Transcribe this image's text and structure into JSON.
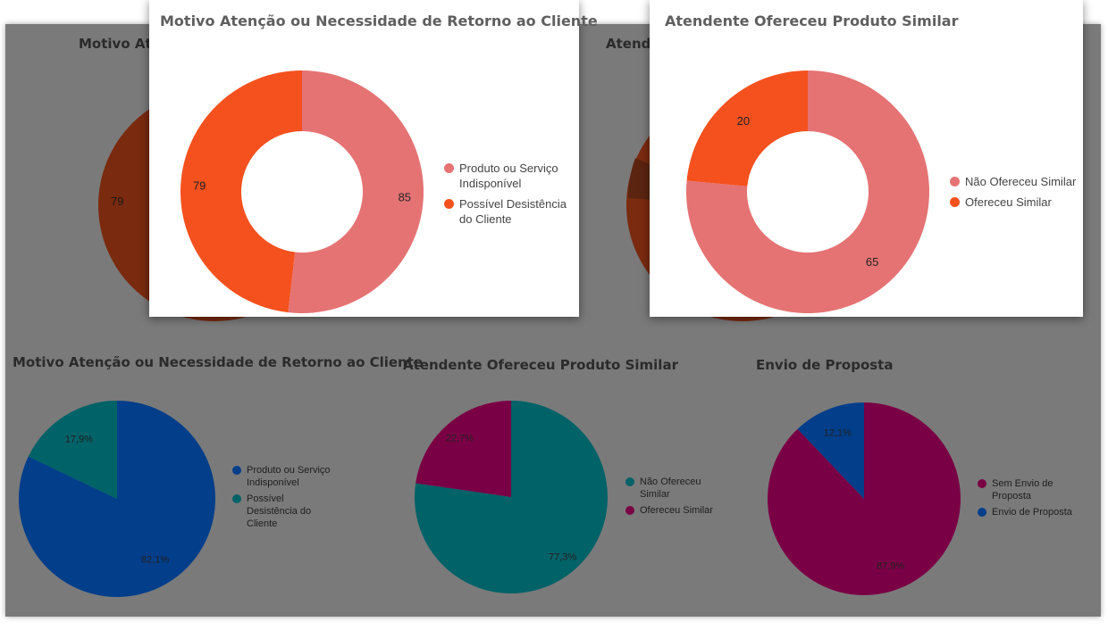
{
  "colors": {
    "pink": "#e57373",
    "orange": "#f4511e",
    "blue": "#023e8a",
    "teal": "#016268",
    "magenta": "#7a0045",
    "dark_orange": "#7a2a0e"
  },
  "ghosts": {
    "top_left_title": "Motivo Ate",
    "top_left_value": "79",
    "top_right_title": "Atend",
    "bottom_left_title": "Motivo Atenção ou Necessidade de Retorno ao Cliente",
    "bottom_mid_title": "Atendente Ofereceu Produto Similar",
    "bottom_right_title": "Envio de Proposta"
  },
  "chart_data": [
    {
      "type": "pie",
      "variant": "donut",
      "title": "Motivo Atenção ou Necessidade de Retorno ao Cliente",
      "categories": [
        "Produto ou Serviço Indisponível",
        "Possível Desistência do Cliente"
      ],
      "values": [
        85,
        79
      ],
      "data_labels": [
        "85",
        "79"
      ],
      "legend_labels": [
        [
          "Produto ou Serviço",
          "Indisponível"
        ],
        [
          "Possível Desistência",
          "do Cliente"
        ]
      ],
      "colors": [
        "#e57373",
        "#f4511e"
      ],
      "legend": "right"
    },
    {
      "type": "pie",
      "variant": "donut",
      "title": "Atendente Ofereceu Produto Similar",
      "categories": [
        "Não Ofereceu Similar",
        "Ofereceu Similar"
      ],
      "values": [
        65,
        20
      ],
      "data_labels": [
        "65",
        "20"
      ],
      "legend_labels": [
        [
          "Não Ofereceu Similar"
        ],
        [
          "Ofereceu Similar"
        ]
      ],
      "colors": [
        "#e57373",
        "#f4511e"
      ],
      "legend": "right"
    },
    {
      "type": "pie",
      "title": "Motivo Atenção ou Necessidade de Retorno ao Cliente",
      "categories": [
        "Produto ou Serviço Indisponível",
        "Possível Desistência do Cliente"
      ],
      "values": [
        82.1,
        17.9
      ],
      "data_labels": [
        "82,1%",
        "17,9%"
      ],
      "legend_labels": [
        [
          "Produto ou Serviço",
          "Indisponível"
        ],
        [
          "Possível",
          "Desistência do",
          "Cliente"
        ]
      ],
      "colors": [
        "#023e8a",
        "#016268"
      ],
      "legend": "right"
    },
    {
      "type": "pie",
      "title": "Atendente Ofereceu Produto Similar",
      "categories": [
        "Não Ofereceu Similar",
        "Ofereceu Similar"
      ],
      "values": [
        77.3,
        22.7
      ],
      "data_labels": [
        "77,3%",
        "22,7%"
      ],
      "legend_labels": [
        [
          "Não Ofereceu",
          "Similar"
        ],
        [
          "Ofereceu Similar"
        ]
      ],
      "colors": [
        "#016268",
        "#7a0045"
      ],
      "legend": "right"
    },
    {
      "type": "pie",
      "title": "Envio de Proposta",
      "categories": [
        "Sem Envio de Proposta",
        "Envio de Proposta"
      ],
      "values": [
        87.9,
        12.1
      ],
      "data_labels": [
        "87,9%",
        "12,1%"
      ],
      "legend_labels": [
        [
          "Sem Envio de",
          "Proposta"
        ],
        [
          "Envio de Proposta"
        ]
      ],
      "colors": [
        "#7a0045",
        "#023e8a"
      ],
      "legend": "right"
    }
  ]
}
